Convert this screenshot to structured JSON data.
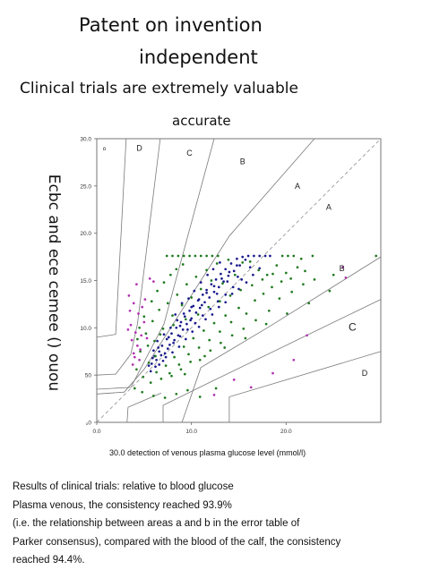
{
  "header": {
    "line1": "Patent on invention",
    "line2": "independent",
    "line3": "Clinical trials are extremely valuable",
    "line4": "accurate"
  },
  "footnotes": [
    "Results of clinical trials: relative to blood glucose",
    "Plasma venous, the consistency reached 93.9%",
    "(i.e. the relationship between areas a and b in the error table of",
    "Parker consensus), compared with the blood of the calf, the consistency",
    "reached 94.4%."
  ],
  "colors": {
    "axis": "#666666",
    "zone_line": "#7a7a7a",
    "diagonal": "#9a9a9a",
    "series_blue": "#1a1a8c",
    "series_green": "#1f7a1f",
    "series_magenta": "#b030b0"
  },
  "chart_data": {
    "type": "scatter",
    "title": "",
    "xlabel": "30.0 detection of venous plasma glucose level (mmol/l)",
    "ylabel": "Ecbc and ece cemee () ouou",
    "xlim": [
      0,
      30
    ],
    "ylim": [
      0,
      30
    ],
    "x_ticks": [
      "0.0",
      "10.0",
      "20.0"
    ],
    "y_ticks": [
      "ₒ0",
      "50",
      "10.0",
      "15.0",
      "20.0",
      "25.0",
      "30.0"
    ],
    "grid": false,
    "zone_labels": [
      {
        "label": "ₒ",
        "x": 0.8,
        "y": 28.8
      },
      {
        "label": "D",
        "x": 4.5,
        "y": 28.7
      },
      {
        "label": "C",
        "x": 9.8,
        "y": 28.2
      },
      {
        "label": "B",
        "x": 15.4,
        "y": 27.3
      },
      {
        "label": "A",
        "x": 21.2,
        "y": 24.7
      },
      {
        "label": "A",
        "x": 24.5,
        "y": 22.5
      },
      {
        "label": "B",
        "x": 25.9,
        "y": 16.0
      },
      {
        "label": "C",
        "x": 27.0,
        "y": 9.7
      },
      {
        "label": "D",
        "x": 28.3,
        "y": 4.9
      }
    ],
    "zone_boundaries": [
      [
        [
          0,
          9
        ],
        [
          2,
          9.3
        ],
        [
          3.1,
          30
        ]
      ],
      [
        [
          0,
          5
        ],
        [
          2,
          5.1
        ],
        [
          3.6,
          7.2
        ],
        [
          4.3,
          10.4
        ],
        [
          6.7,
          30
        ]
      ],
      [
        [
          0,
          3.5
        ],
        [
          3.6,
          3.7
        ],
        [
          7.1,
          10.4
        ],
        [
          12.4,
          30
        ]
      ],
      [
        [
          0,
          3
        ],
        [
          2.9,
          3.2
        ],
        [
          5,
          5.6
        ],
        [
          14,
          19.7
        ],
        [
          23,
          30
        ]
      ],
      [
        [
          0,
          0
        ],
        [
          30,
          30
        ]
      ],
      [
        [
          9,
          0
        ],
        [
          11,
          5.8
        ],
        [
          18.5,
          10.3
        ],
        [
          30,
          17.5
        ]
      ],
      [
        [
          7,
          0
        ],
        [
          7,
          1.8
        ],
        [
          12.5,
          4.5
        ],
        [
          30,
          13
        ]
      ],
      [
        [
          14,
          0
        ],
        [
          14,
          2.7
        ],
        [
          30,
          7.5
        ]
      ],
      [
        [
          3.2,
          0
        ],
        [
          3.3,
          1.6
        ],
        [
          6.8,
          3.1
        ]
      ]
    ],
    "series": [
      {
        "color": "blue",
        "points": [
          [
            5.8,
            6.2
          ],
          [
            6.1,
            7.0
          ],
          [
            6.3,
            6.6
          ],
          [
            6.6,
            7.5
          ],
          [
            6.9,
            8.1
          ],
          [
            7.2,
            7.3
          ],
          [
            7.4,
            8.8
          ],
          [
            7.7,
            8.2
          ],
          [
            7.9,
            9.4
          ],
          [
            8.2,
            8.7
          ],
          [
            8.4,
            10.0
          ],
          [
            8.6,
            9.2
          ],
          [
            8.9,
            10.6
          ],
          [
            9.1,
            9.8
          ],
          [
            9.3,
            11.2
          ],
          [
            9.5,
            10.4
          ],
          [
            9.8,
            11.8
          ],
          [
            10.0,
            11.0
          ],
          [
            10.2,
            12.3
          ],
          [
            10.5,
            11.6
          ],
          [
            10.7,
            12.9
          ],
          [
            10.9,
            12.1
          ],
          [
            11.2,
            13.5
          ],
          [
            11.4,
            12.7
          ],
          [
            11.6,
            14.0
          ],
          [
            11.9,
            13.2
          ],
          [
            12.1,
            14.6
          ],
          [
            12.4,
            13.8
          ],
          [
            12.6,
            15.1
          ],
          [
            12.9,
            14.3
          ],
          [
            13.1,
            15.7
          ],
          [
            13.4,
            14.9
          ],
          [
            13.6,
            16.2
          ],
          [
            13.9,
            15.5
          ],
          [
            14.2,
            16.8
          ],
          [
            14.5,
            16.0
          ],
          [
            14.8,
            17.3
          ],
          [
            15.1,
            16.6
          ],
          [
            15.4,
            17.5
          ],
          [
            16.0,
            17.6
          ],
          [
            16.6,
            17.6
          ],
          [
            17.2,
            17.6
          ],
          [
            17.8,
            17.6
          ],
          [
            18.3,
            17.6
          ],
          [
            6.0,
            7.6
          ],
          [
            6.4,
            8.6
          ],
          [
            6.8,
            7.1
          ],
          [
            7.1,
            9.3
          ],
          [
            7.5,
            7.8
          ],
          [
            7.8,
            10.0
          ],
          [
            8.1,
            8.4
          ],
          [
            8.5,
            10.8
          ],
          [
            8.8,
            9.1
          ],
          [
            9.2,
            11.5
          ],
          [
            9.6,
            9.8
          ],
          [
            10.0,
            12.2
          ],
          [
            10.4,
            10.5
          ],
          [
            10.8,
            13.0
          ],
          [
            11.2,
            11.3
          ],
          [
            11.6,
            13.7
          ],
          [
            12.0,
            12.0
          ],
          [
            12.4,
            14.4
          ],
          [
            12.8,
            12.8
          ],
          [
            13.2,
            15.2
          ],
          [
            13.6,
            13.5
          ],
          [
            14.0,
            15.9
          ],
          [
            14.4,
            14.3
          ],
          [
            14.8,
            16.6
          ],
          [
            15.3,
            15.1
          ],
          [
            15.7,
            17.2
          ],
          [
            5.7,
            5.4
          ],
          [
            6.2,
            5.9
          ],
          [
            6.6,
            6.1
          ],
          [
            7.0,
            6.5
          ],
          [
            7.3,
            6.9
          ],
          [
            8.0,
            7.4
          ],
          [
            8.7,
            8.0
          ],
          [
            9.4,
            8.8
          ],
          [
            10.1,
            9.6
          ],
          [
            10.8,
            10.1
          ],
          [
            11.5,
            10.9
          ],
          [
            12.2,
            11.4
          ],
          [
            12.9,
            12.2
          ],
          [
            13.6,
            12.7
          ],
          [
            14.3,
            13.6
          ],
          [
            15.0,
            14.1
          ],
          [
            15.8,
            14.8
          ],
          [
            16.5,
            15.6
          ],
          [
            17.2,
            16.3
          ],
          [
            8.3,
            11.4
          ],
          [
            9.0,
            12.6
          ],
          [
            9.7,
            13.1
          ],
          [
            10.3,
            13.9
          ],
          [
            11.0,
            14.8
          ],
          [
            11.7,
            15.6
          ],
          [
            12.3,
            16.2
          ],
          [
            13.0,
            16.9
          ],
          [
            5.5,
            6.0
          ],
          [
            5.9,
            6.8
          ],
          [
            6.5,
            7.9
          ],
          [
            7.6,
            9.0
          ],
          [
            8.8,
            10.2
          ],
          [
            9.9,
            10.8
          ],
          [
            11.1,
            12.4
          ],
          [
            12.7,
            13.6
          ],
          [
            13.8,
            14.9
          ],
          [
            14.9,
            15.4
          ],
          [
            16.2,
            16.4
          ]
        ]
      },
      {
        "color": "green",
        "points": [
          [
            4.2,
            5.6
          ],
          [
            4.6,
            7.5
          ],
          [
            4.9,
            4.8
          ],
          [
            5.2,
            9.4
          ],
          [
            5.5,
            6.3
          ],
          [
            5.7,
            4.2
          ],
          [
            5.9,
            10.7
          ],
          [
            6.1,
            8.6
          ],
          [
            6.3,
            5.3
          ],
          [
            6.6,
            11.9
          ],
          [
            6.8,
            4.6
          ],
          [
            7.0,
            9.9
          ],
          [
            7.3,
            6.0
          ],
          [
            7.5,
            12.6
          ],
          [
            7.7,
            5.2
          ],
          [
            8.0,
            11.3
          ],
          [
            8.2,
            6.9
          ],
          [
            8.5,
            13.5
          ],
          [
            8.7,
            6.1
          ],
          [
            9.0,
            12.4
          ],
          [
            9.2,
            8.0
          ],
          [
            9.5,
            14.6
          ],
          [
            9.7,
            7.2
          ],
          [
            10.0,
            13.2
          ],
          [
            10.2,
            8.9
          ],
          [
            10.5,
            15.4
          ],
          [
            10.8,
            7.9
          ],
          [
            11.0,
            14.1
          ],
          [
            11.3,
            9.7
          ],
          [
            11.6,
            16.1
          ],
          [
            11.9,
            8.7
          ],
          [
            12.1,
            15.0
          ],
          [
            12.4,
            10.5
          ],
          [
            12.7,
            16.8
          ],
          [
            13.0,
            9.6
          ],
          [
            13.3,
            14.7
          ],
          [
            13.6,
            11.3
          ],
          [
            13.9,
            17.2
          ],
          [
            14.2,
            10.6
          ],
          [
            14.6,
            15.6
          ],
          [
            15.0,
            12.1
          ],
          [
            15.4,
            16.9
          ],
          [
            15.8,
            11.5
          ],
          [
            16.2,
            17.0
          ],
          [
            16.7,
            12.9
          ],
          [
            17.1,
            16.1
          ],
          [
            17.6,
            13.6
          ],
          [
            18.0,
            15.6
          ],
          [
            18.5,
            14.3
          ],
          [
            19.0,
            16.6
          ],
          [
            19.5,
            14.9
          ],
          [
            20.0,
            15.8
          ],
          [
            20.5,
            15.2
          ],
          [
            21.2,
            16.4
          ],
          [
            22.0,
            16.0
          ],
          [
            7.4,
            17.6
          ],
          [
            8.0,
            17.6
          ],
          [
            8.6,
            17.6
          ],
          [
            9.2,
            17.6
          ],
          [
            9.8,
            17.6
          ],
          [
            10.4,
            17.6
          ],
          [
            11.0,
            17.6
          ],
          [
            11.6,
            17.6
          ],
          [
            12.2,
            17.6
          ],
          [
            12.8,
            17.6
          ],
          [
            19.6,
            17.6
          ],
          [
            20.2,
            17.6
          ],
          [
            20.8,
            17.6
          ],
          [
            21.6,
            17.3
          ],
          [
            22.8,
            17.6
          ],
          [
            29.5,
            17.6
          ],
          [
            4.5,
            10.0
          ],
          [
            5.0,
            11.2
          ],
          [
            5.8,
            12.8
          ],
          [
            6.4,
            13.9
          ],
          [
            7.1,
            14.8
          ],
          [
            7.8,
            15.6
          ],
          [
            8.4,
            16.2
          ],
          [
            9.1,
            16.7
          ],
          [
            5.4,
            8.1
          ],
          [
            6.2,
            7.0
          ],
          [
            7.9,
            4.9
          ],
          [
            8.9,
            5.6
          ],
          [
            9.9,
            6.4
          ],
          [
            10.9,
            6.6
          ],
          [
            12.0,
            7.6
          ],
          [
            13.1,
            8.4
          ],
          [
            14.3,
            9.2
          ],
          [
            15.5,
            9.9
          ],
          [
            16.8,
            10.8
          ],
          [
            18.2,
            11.8
          ],
          [
            19.3,
            13.1
          ],
          [
            20.6,
            13.8
          ],
          [
            21.8,
            14.6
          ],
          [
            23.0,
            15.1
          ],
          [
            25.0,
            15.6
          ],
          [
            4.0,
            3.6
          ],
          [
            4.8,
            3.2
          ],
          [
            6.0,
            2.8
          ],
          [
            7.2,
            2.6
          ],
          [
            8.4,
            3.0
          ],
          [
            9.6,
            3.4
          ],
          [
            10.9,
            2.7
          ],
          [
            12.6,
            3.6
          ],
          [
            4.3,
            8.8
          ],
          [
            6.7,
            9.3
          ],
          [
            8.1,
            10.3
          ],
          [
            9.4,
            10.9
          ],
          [
            10.7,
            11.4
          ],
          [
            11.8,
            12.2
          ],
          [
            13.0,
            12.8
          ],
          [
            14.1,
            13.4
          ],
          [
            15.2,
            14.0
          ],
          [
            16.4,
            14.5
          ],
          [
            17.5,
            15.1
          ],
          [
            18.6,
            15.7
          ],
          [
            9.3,
            5.1
          ],
          [
            11.4,
            7.0
          ],
          [
            13.5,
            7.9
          ],
          [
            15.7,
            8.9
          ],
          [
            17.9,
            10.4
          ],
          [
            20.1,
            11.5
          ],
          [
            22.4,
            12.6
          ],
          [
            24.6,
            13.9
          ]
        ]
      },
      {
        "color": "magenta",
        "points": [
          [
            3.4,
            13.4
          ],
          [
            3.9,
            12.6
          ],
          [
            4.4,
            11.5
          ],
          [
            3.6,
            10.3
          ],
          [
            4.1,
            9.5
          ],
          [
            3.7,
            8.7
          ],
          [
            4.3,
            8.1
          ],
          [
            4.0,
            6.9
          ],
          [
            4.6,
            7.7
          ],
          [
            3.8,
            6.1
          ],
          [
            4.8,
            12.2
          ],
          [
            5.1,
            13.0
          ],
          [
            4.2,
            14.6
          ],
          [
            3.5,
            11.8
          ],
          [
            4.7,
            9.2
          ],
          [
            3.9,
            7.3
          ],
          [
            4.5,
            6.6
          ],
          [
            5.3,
            8.9
          ],
          [
            5.0,
            10.6
          ],
          [
            3.3,
            9.8
          ],
          [
            6.0,
            14.9
          ],
          [
            5.6,
            15.2
          ],
          [
            26.3,
            15.3
          ],
          [
            26.0,
            16.4
          ],
          [
            18.6,
            5.2
          ],
          [
            20.8,
            6.6
          ],
          [
            22.2,
            9.2
          ],
          [
            14.5,
            4.5
          ],
          [
            16.3,
            3.7
          ],
          [
            12.4,
            2.9
          ]
        ]
      }
    ]
  }
}
